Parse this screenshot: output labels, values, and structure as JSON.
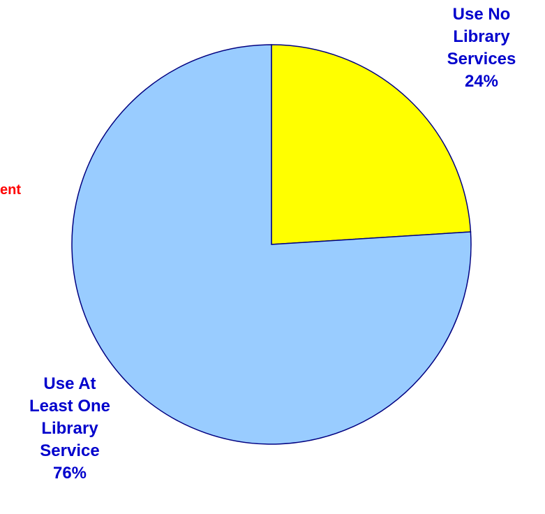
{
  "chart_data": {
    "type": "pie",
    "title": "",
    "slices": [
      {
        "label": "Use No Library Services",
        "label_lines": [
          "Use No",
          "Library",
          "Services"
        ],
        "value": 24,
        "value_label": "24%",
        "color": "#ffff00"
      },
      {
        "label": "Use At Least One Library Service",
        "label_lines": [
          "Use At",
          "Least One",
          "Library",
          "Service"
        ],
        "value": 76,
        "value_label": "76%",
        "color": "#99ccff"
      }
    ],
    "outline_color": "#000080",
    "label_color": "#0000cc",
    "partial_label": {
      "text": "ent",
      "color": "#ff0000"
    }
  }
}
